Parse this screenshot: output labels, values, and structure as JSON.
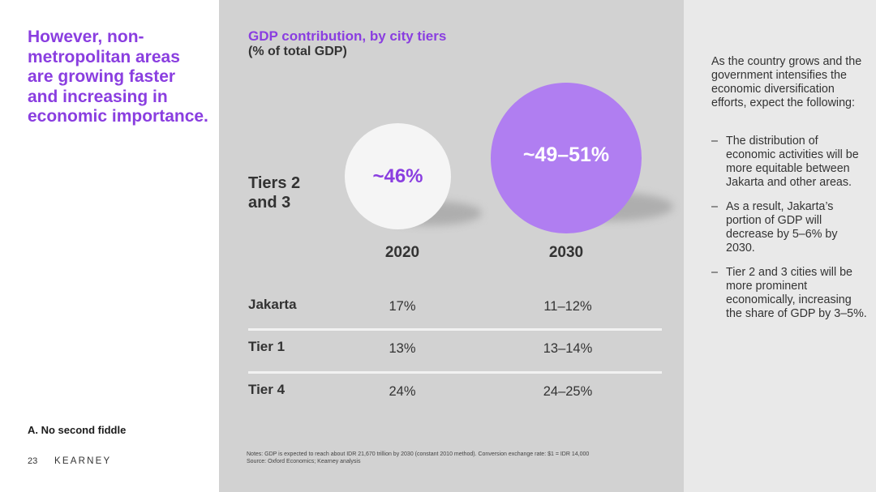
{
  "left": {
    "headline": "However, non-metropolitan areas are growing faster and increasing in economic importance.",
    "section_label": "A. No second fiddle",
    "page_number": "23",
    "brand": "KEARNEY"
  },
  "chart": {
    "title": "GDP contribution, by city tiers",
    "subtitle": "(% of total GDP)",
    "tiers_label_line1": "Tiers 2",
    "tiers_label_line2": "and 3",
    "bubbles": [
      {
        "year": "2020",
        "label": "~46%",
        "color": "#f5f5f5"
      },
      {
        "year": "2030",
        "label": "~49–51%",
        "color": "#b07ef1"
      }
    ],
    "rows": [
      {
        "label": "Jakarta",
        "v2020": "17%",
        "v2030": "11–12%"
      },
      {
        "label": "Tier 1",
        "v2020": "13%",
        "v2030": "13–14%"
      },
      {
        "label": "Tier 4",
        "v2020": "24%",
        "v2030": "24–25%"
      }
    ],
    "notes_line1": "Notes: GDP is expected to reach about IDR 21,670 trillion by 2030 (constant 2010 method). Conversion exchange rate: $1 = IDR 14,000",
    "notes_line2": "Source: Oxford Economics; Kearney analysis"
  },
  "chart_data": {
    "type": "table",
    "title": "GDP contribution, by city tiers",
    "subtitle": "(% of total GDP)",
    "columns": [
      "2020",
      "2030"
    ],
    "rows": [
      {
        "label": "Tiers 2 and 3",
        "2020": "~46%",
        "2030": "~49–51%"
      },
      {
        "label": "Jakarta",
        "2020": "17%",
        "2030": "11–12%"
      },
      {
        "label": "Tier 1",
        "2020": "13%",
        "2030": "13–14%"
      },
      {
        "label": "Tier 4",
        "2020": "24%",
        "2030": "24–25%"
      }
    ]
  },
  "right": {
    "intro": "As the country grows and the government intensifies the economic diversification efforts, expect the following:",
    "dash": "–",
    "bullets": [
      "The distribution of economic activities will be more equitable between Jakarta and other areas.",
      "As a result, Jakarta’s portion of GDP will decrease by 5–6% by 2030.",
      "Tier 2 and 3 cities will be more prominent economically, increasing the share of GDP by 3–5%."
    ]
  },
  "colors": {
    "accent_purple": "#8a3ee0",
    "bubble_purple": "#b07ef1",
    "center_bg": "#d2d2d2",
    "right_bg": "#e9e9e9"
  }
}
